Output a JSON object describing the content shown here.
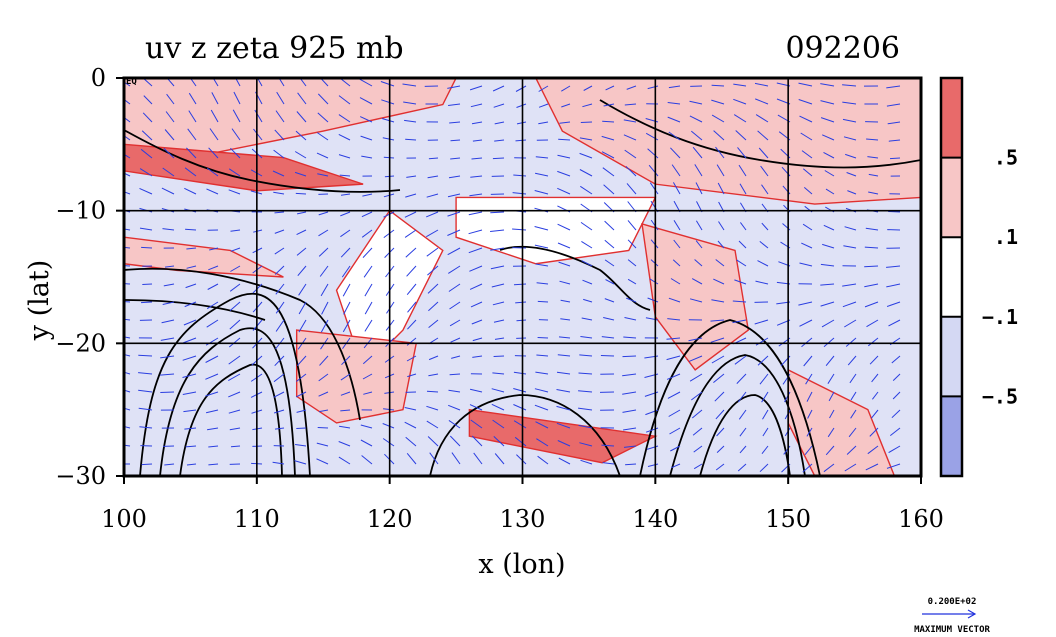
{
  "chart_data": {
    "type": "heatmap",
    "title": "uv z zeta 925 mb",
    "date_label": "092206",
    "xlabel": "x (lon)",
    "ylabel": "y (lat)",
    "xlim": [
      100,
      160
    ],
    "ylim": [
      -30,
      0
    ],
    "x_ticks": [
      100,
      110,
      120,
      130,
      140,
      150,
      160
    ],
    "y_ticks": [
      0,
      -10,
      -20,
      -30
    ],
    "x_tick_labels": [
      "100",
      "110",
      "120",
      "130",
      "140",
      "150",
      "160"
    ],
    "y_tick_labels": [
      "0",
      "−10",
      "−20",
      "−30"
    ],
    "corner_label": "EQ",
    "grid": true,
    "colorbar": {
      "levels": [
        ".5",
        ".1",
        "−.1",
        "−.5"
      ],
      "colors": [
        "#e86a6a",
        "#f7c6c6",
        "#ffffff",
        "#d4d8f3",
        "#9aa2e6"
      ]
    },
    "vector_legend": {
      "value": "0.200E+02",
      "label": "MAXIMUM VECTOR"
    }
  }
}
